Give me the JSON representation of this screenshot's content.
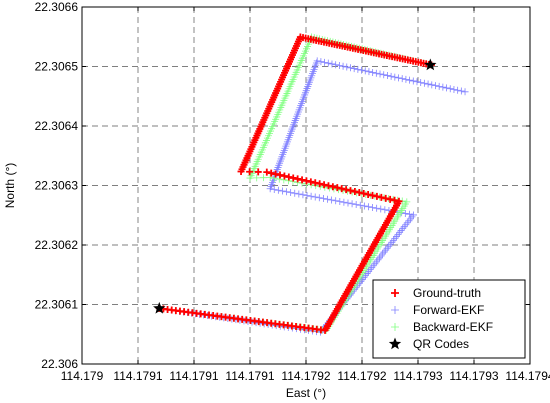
{
  "chart_data": {
    "type": "scatter",
    "title": "",
    "xlabel": "East (°)",
    "ylabel": "North (°)",
    "xlim": [
      114.179,
      114.1794
    ],
    "ylim": [
      22.306,
      22.3066
    ],
    "x_tick_values": [
      114.179,
      114.17905,
      114.1791,
      114.17915,
      114.1792,
      114.17925,
      114.1793,
      114.17935,
      114.1794
    ],
    "x_tick_labels": [
      "114.179",
      "114.1791",
      "114.1791",
      "114.1791",
      "114.1792",
      "114.1792",
      "114.1793",
      "114.1793",
      "114.1794"
    ],
    "y_tick_values": [
      22.306,
      22.3061,
      22.3062,
      22.3063,
      22.3064,
      22.3065,
      22.3066
    ],
    "y_tick_labels": [
      "22.306",
      "22.3061",
      "22.3062",
      "22.3063",
      "22.3064",
      "22.3065",
      "22.3066"
    ],
    "grid": true,
    "legend_position": "bottom-right",
    "series": [
      {
        "name": "Ground-truth",
        "color": "#ff0000",
        "marker": "plus",
        "path": [
          [
            114.179069,
            22.3060935
          ],
          [
            114.179217,
            22.3060565
          ],
          [
            114.179283,
            22.3062735
          ],
          [
            114.179165,
            22.3063225
          ],
          [
            114.179142,
            22.3063235
          ],
          [
            114.179195,
            22.3065495
          ],
          [
            114.179312,
            22.3065025
          ]
        ],
        "points_per_segment": [
          40,
          60,
          30,
          3,
          60,
          50
        ]
      },
      {
        "name": "Forward-EKF",
        "color": "#8080ff",
        "marker": "plus",
        "path": [
          [
            114.179069,
            22.3060935
          ],
          [
            114.179213,
            22.3060535
          ],
          [
            114.179296,
            22.3062505
          ],
          [
            114.179168,
            22.3062945
          ],
          [
            114.17921,
            22.3065095
          ],
          [
            114.179342,
            22.3064575
          ]
        ],
        "points_per_segment": [
          40,
          60,
          35,
          60,
          40
        ]
      },
      {
        "name": "Backward-EKF",
        "color": "#80ff80",
        "marker": "plus",
        "path": [
          [
            114.179069,
            22.3060935
          ],
          [
            114.179218,
            22.3060565
          ],
          [
            114.17929,
            22.3062725
          ],
          [
            114.179168,
            22.3063135
          ],
          [
            114.17915,
            22.3063125
          ],
          [
            114.179205,
            22.3065495
          ],
          [
            114.179312,
            22.3065025
          ]
        ],
        "points_per_segment": [
          40,
          60,
          30,
          3,
          60,
          45
        ]
      },
      {
        "name": "QR Codes",
        "color": "#000000",
        "marker": "star",
        "points": [
          [
            114.179069,
            22.3060935
          ],
          [
            114.179311,
            22.3065025
          ]
        ]
      }
    ]
  }
}
